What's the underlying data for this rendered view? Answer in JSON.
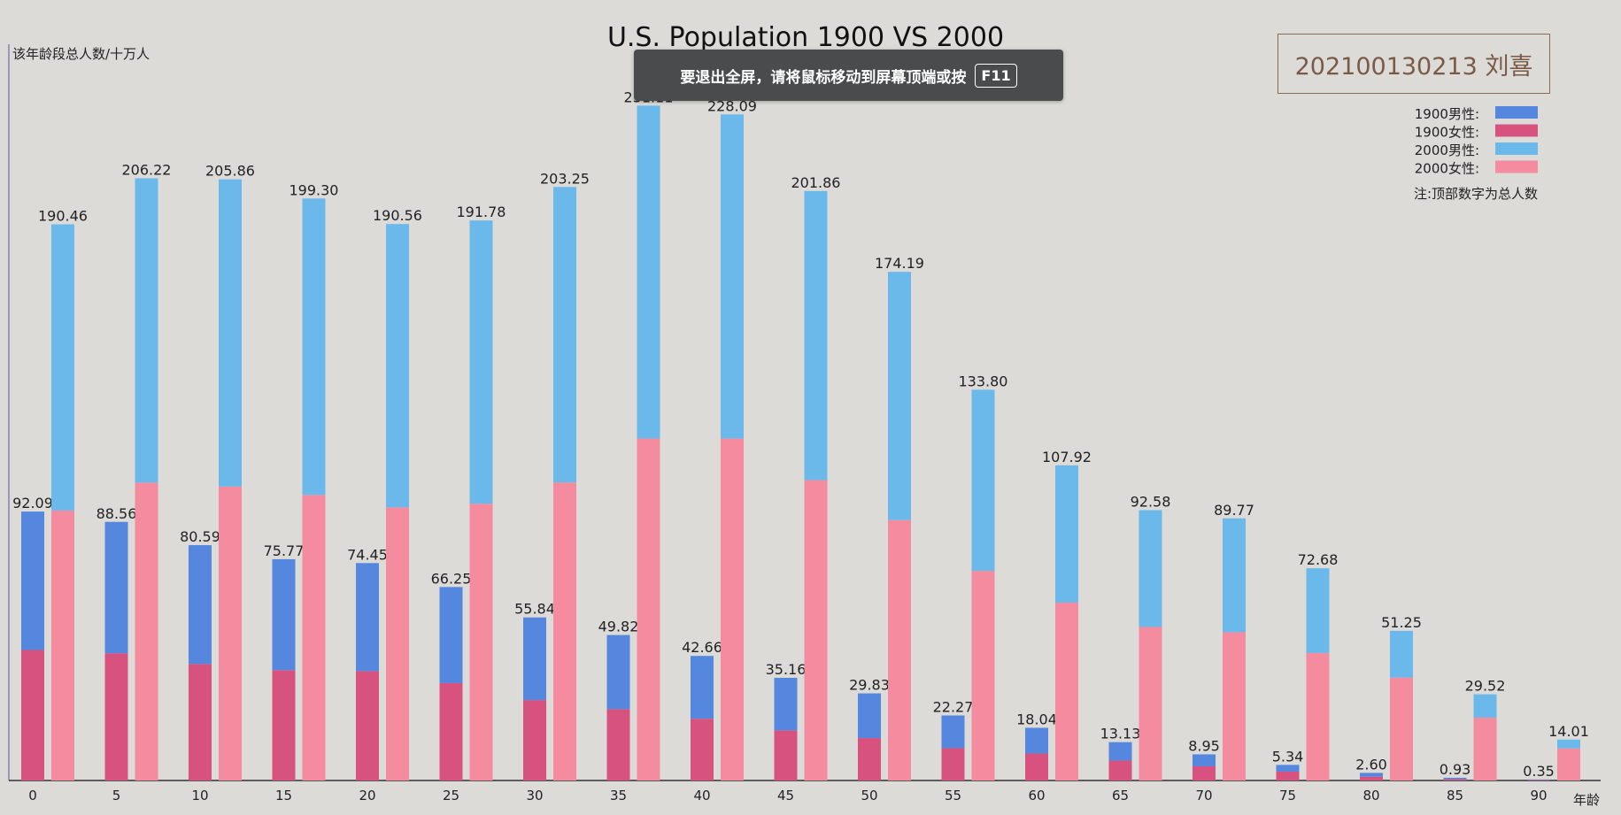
{
  "name_box": {
    "text": "202100130213 刘喜"
  },
  "toast": {
    "message": "要退出全屏，请将鼠标移动到屏幕顶端或按",
    "key": "F11"
  },
  "chart_data": {
    "type": "bar",
    "title": "U.S. Population 1900 VS 2000",
    "ylabel": "该年龄段总人数/十万人",
    "xlabel": "年龄",
    "note": "注:顶部数字为总人数",
    "categories": [
      "0",
      "5",
      "10",
      "15",
      "20",
      "25",
      "30",
      "35",
      "40",
      "45",
      "50",
      "55",
      "60",
      "65",
      "70",
      "75",
      "80",
      "85",
      "90"
    ],
    "groups": [
      {
        "year": "1900",
        "stacked": [
          {
            "name": "1900男性:",
            "color": "#5587de",
            "values": [
              47.4,
              45.0,
              40.7,
              38.0,
              37.0,
              32.9,
              28.3,
              25.4,
              21.5,
              18.0,
              15.3,
              11.2,
              8.8,
              6.3,
              4.1,
              2.3,
              1.3,
              0.5,
              0.15
            ]
          },
          {
            "name": "1900女性:",
            "color": "#d85280",
            "values": [
              44.69,
              43.56,
              39.89,
              37.77,
              37.45,
              33.35,
              27.54,
              24.42,
              21.16,
              17.16,
              14.53,
              11.07,
              9.24,
              6.83,
              4.85,
              3.04,
              1.3,
              0.43,
              0.2
            ]
          }
        ],
        "totals": [
          "92.09",
          "88.56",
          "80.59",
          "75.77",
          "74.45",
          "66.25",
          "55.84",
          "49.82",
          "42.66",
          "35.16",
          "29.83",
          "22.27",
          "18.04",
          "13.13",
          "8.95",
          "5.34",
          "2.60",
          "0.93",
          "0.35"
        ]
      },
      {
        "year": "2000",
        "stacked": [
          {
            "name": "2000男性:",
            "color": "#6bb9ea",
            "values": [
              98.0,
              104.2,
              105.2,
              101.5,
              97.0,
              97.0,
              101.2,
              114.0,
              111.0,
              99.0,
              85.0,
              62.0,
              47.0,
              40.0,
              39.0,
              29.0,
              16.0,
              8.0,
              3.0
            ]
          },
          {
            "name": "2000女性:",
            "color": "#f48b9e",
            "values": [
              92.46,
              102.02,
              100.66,
              97.8,
              93.56,
              94.78,
              102.05,
              117.11,
              117.09,
              102.86,
              89.19,
              71.8,
              60.92,
              52.58,
              50.77,
              43.68,
              35.25,
              21.52,
              11.01
            ]
          }
        ],
        "totals": [
          "190.46",
          "206.22",
          "205.86",
          "199.30",
          "190.56",
          "191.78",
          "203.25",
          "231.11",
          "228.09",
          "201.86",
          "174.19",
          "133.80",
          "107.92",
          "92.58",
          "89.77",
          "72.68",
          "51.25",
          "29.52",
          "14.01"
        ]
      }
    ],
    "ylim": [
      0,
      260
    ],
    "grid": false,
    "legend_position": "top-right"
  }
}
